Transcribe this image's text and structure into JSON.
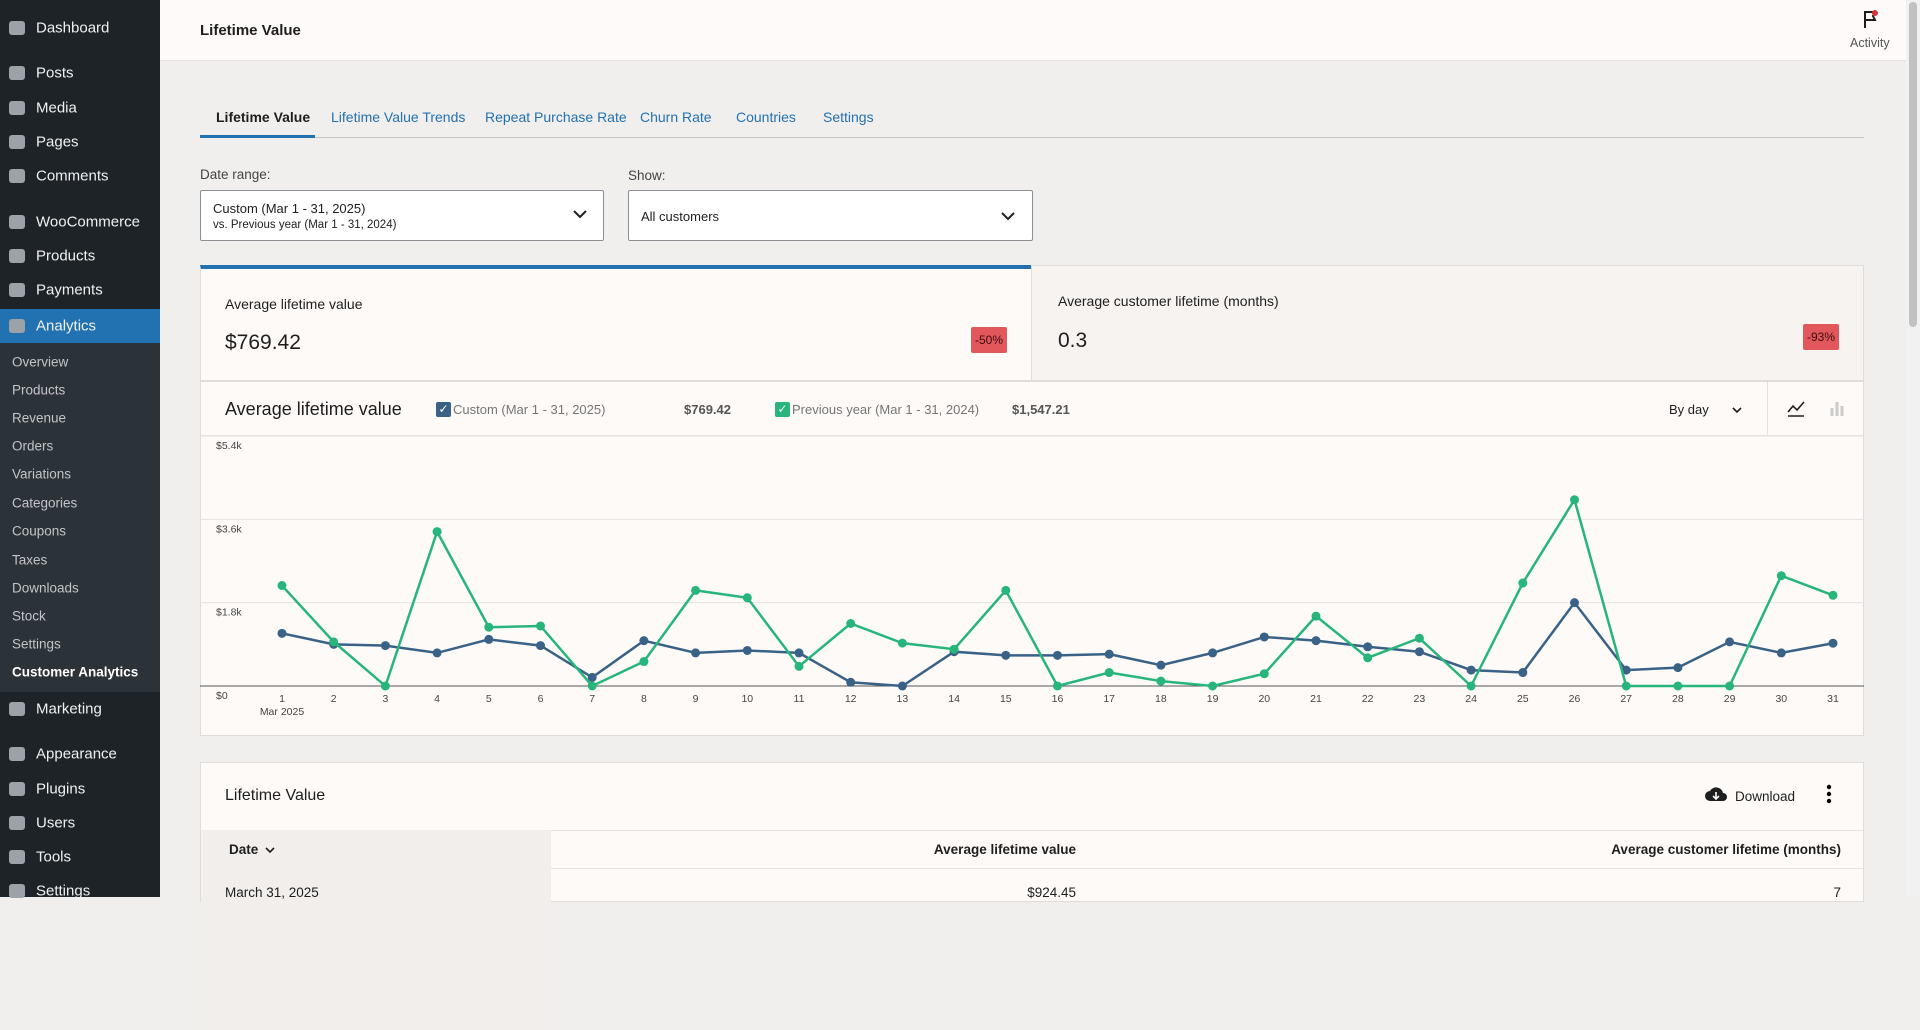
{
  "sidebar": {
    "menu": [
      "Dashboard",
      "Posts",
      "Media",
      "Pages",
      "Comments",
      "WooCommerce",
      "Products",
      "Payments",
      "Analytics"
    ],
    "submenu": [
      "Overview",
      "Products",
      "Revenue",
      "Orders",
      "Variations",
      "Categories",
      "Coupons",
      "Taxes",
      "Downloads",
      "Stock",
      "Settings",
      "Customer Analytics"
    ],
    "menu_after": [
      "Marketing",
      "Appearance",
      "Plugins",
      "Users",
      "Tools",
      "Settings"
    ]
  },
  "header": {
    "title": "Lifetime Value",
    "activity": "Activity"
  },
  "tabs": [
    "Lifetime Value",
    "Lifetime Value Trends",
    "Repeat Purchase Rate",
    "Churn Rate",
    "Countries",
    "Settings"
  ],
  "filters": {
    "date_range_label": "Date range:",
    "date_range_value": "Custom (Mar 1 - 31, 2025)",
    "date_range_compare": "vs. Previous year (Mar 1 - 31, 2024)",
    "show_label": "Show:",
    "show_value": "All customers"
  },
  "summary": [
    {
      "label": "Average lifetime value",
      "value": "$769.42",
      "delta": "-50%"
    },
    {
      "label": "Average customer lifetime (months)",
      "value": "0.3",
      "delta": "-93%"
    }
  ],
  "chart_data": {
    "type": "line",
    "title": "Average lifetime value",
    "interval": "By day",
    "categories": [
      "1",
      "2",
      "3",
      "4",
      "5",
      "6",
      "7",
      "8",
      "9",
      "10",
      "11",
      "12",
      "13",
      "14",
      "15",
      "16",
      "17",
      "18",
      "19",
      "20",
      "21",
      "22",
      "23",
      "24",
      "25",
      "26",
      "27",
      "28",
      "29",
      "30",
      "31"
    ],
    "x_sublabel": "Mar 2025",
    "ylim": [
      0,
      5400
    ],
    "yticks": [
      {
        "value": 0,
        "label": "$0"
      },
      {
        "value": 1800,
        "label": "$1.8k"
      },
      {
        "value": 3600,
        "label": "$3.6k"
      },
      {
        "value": 5400,
        "label": "$5.4k"
      }
    ],
    "grid": true,
    "series": [
      {
        "name": "Custom (Mar 1 - 31, 2025)",
        "total": "$769.42",
        "color": "#3a6186",
        "values": [
          1138,
          900,
          873,
          715,
          1006,
          873,
          185,
          979,
          715,
          768,
          715,
          80,
          0,
          741,
          662,
          662,
          688,
          450,
          715,
          1059,
          979,
          847,
          741,
          344,
          291,
          1800,
          344,
          397,
          953,
          715,
          924
        ]
      },
      {
        "name": "Previous year (Mar 1 - 31, 2024)",
        "total": "$1,547.21",
        "color": "#27b57c",
        "values": [
          2170,
          953,
          0,
          3335,
          1270,
          1297,
          0,
          529,
          2065,
          1906,
          424,
          1350,
          926,
          794,
          2065,
          0,
          291,
          106,
          0,
          265,
          1509,
          609,
          1032,
          0,
          2224,
          4024,
          0,
          0,
          0,
          2382,
          1959
        ]
      }
    ]
  },
  "table": {
    "title": "Lifetime Value",
    "download": "Download",
    "columns": [
      "Date",
      "Average lifetime value",
      "Average customer lifetime (months)"
    ],
    "rows": [
      [
        "March 31, 2025",
        "$924.45",
        "7"
      ]
    ]
  }
}
